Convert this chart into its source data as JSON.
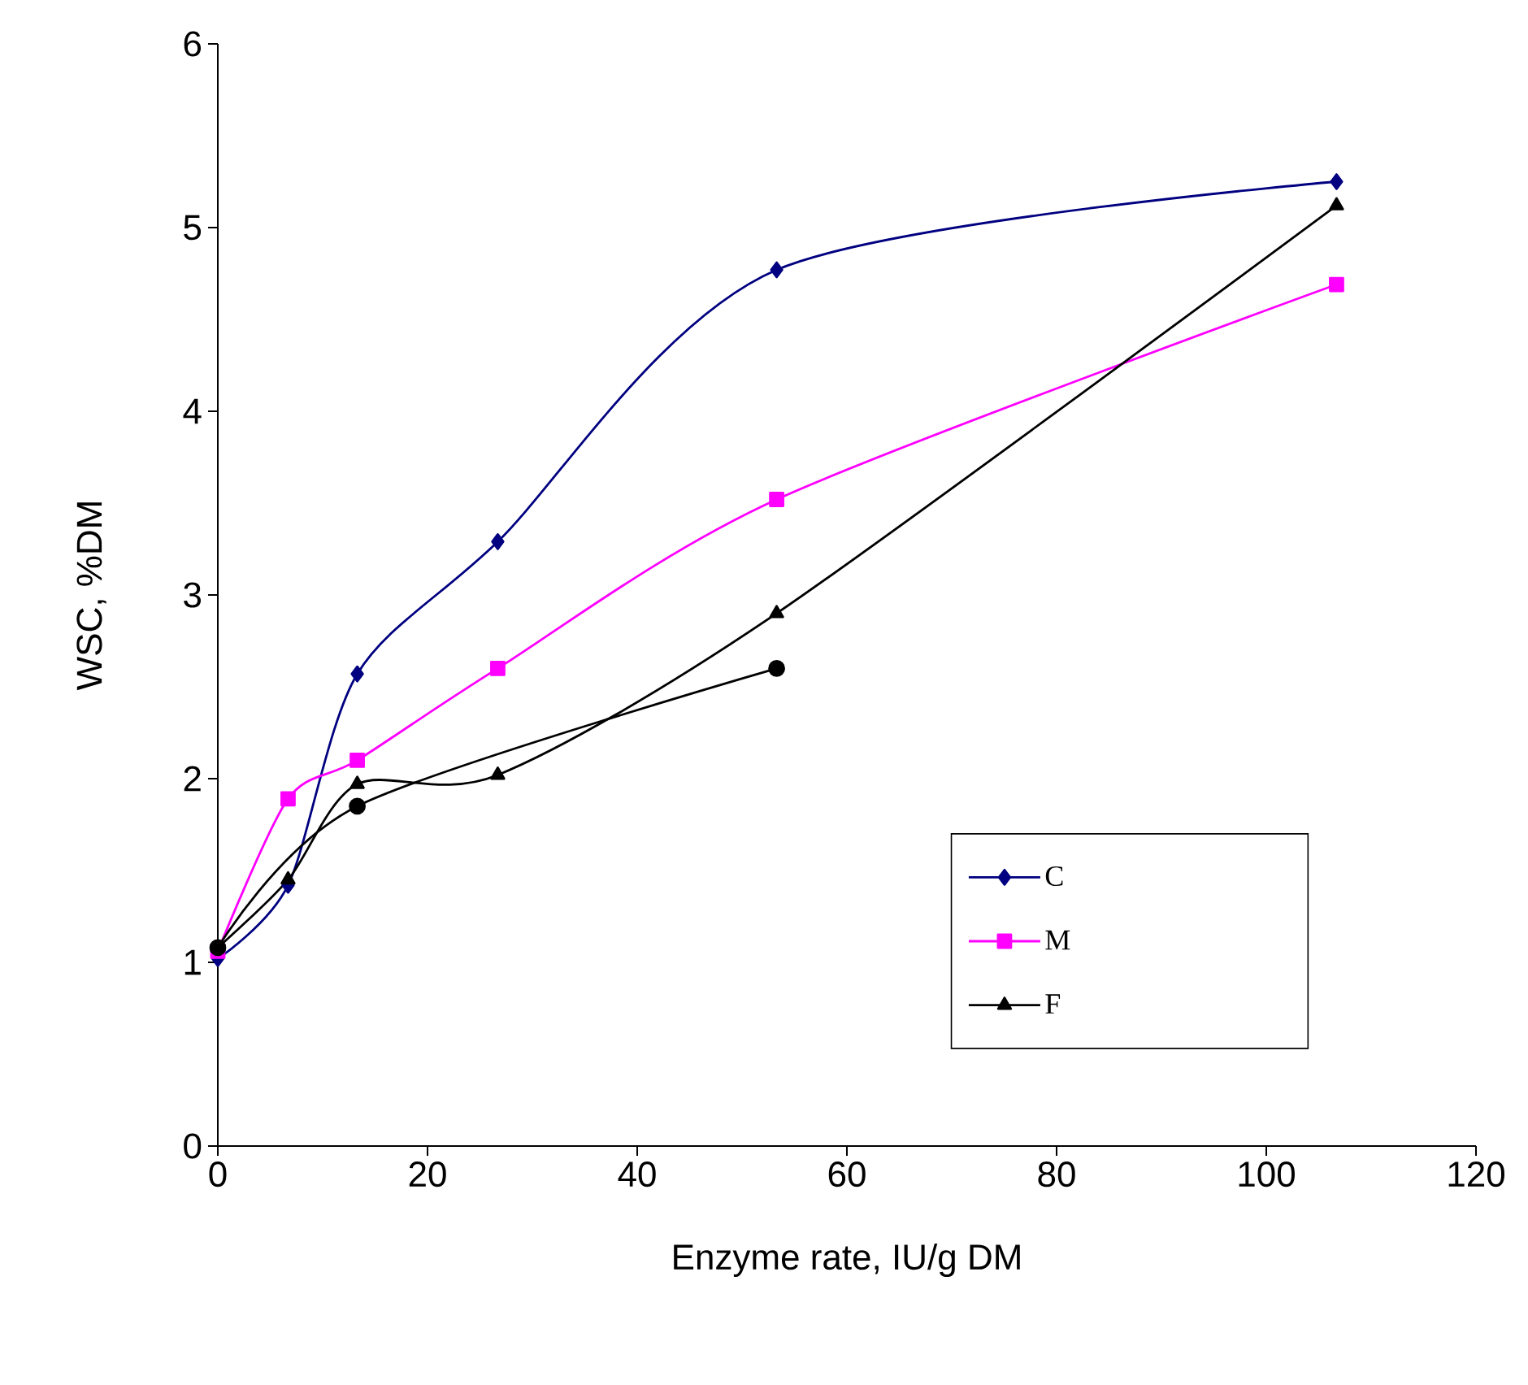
{
  "chart_data": {
    "type": "line",
    "xlabel": "Enzyme rate, IU/g DM",
    "ylabel": "WSC, %DM",
    "xlim": [
      0,
      120
    ],
    "ylim": [
      0,
      6
    ],
    "xticks": [
      0,
      20,
      40,
      60,
      80,
      100,
      120
    ],
    "yticks": [
      0,
      1,
      2,
      3,
      4,
      5,
      6
    ],
    "grid": false,
    "legend": "bottom right",
    "line_style": "solid",
    "series": [
      {
        "name": "C",
        "color": "#000080",
        "marker": "diamond",
        "x": [
          0,
          6.7,
          13.3,
          26.7,
          53.3,
          106.7
        ],
        "values": [
          1.02,
          1.42,
          2.57,
          3.29,
          4.77,
          5.25
        ]
      },
      {
        "name": "M",
        "color": "#ff00ff",
        "marker": "square",
        "x": [
          0,
          6.7,
          13.3,
          26.7,
          53.3,
          106.7
        ],
        "values": [
          1.06,
          1.89,
          2.1,
          2.6,
          3.52,
          4.69
        ]
      },
      {
        "name": "F",
        "color": "#000000",
        "marker": "triangle",
        "x": [
          0,
          6.7,
          13.3,
          26.7,
          53.3,
          106.7
        ],
        "values": [
          1.08,
          1.45,
          1.97,
          2.02,
          2.9,
          5.12
        ]
      },
      {
        "color": "#000000",
        "marker": "circle",
        "x": [
          0,
          13.3,
          53.3
        ],
        "values": [
          1.08,
          1.85,
          2.6
        ]
      }
    ]
  }
}
